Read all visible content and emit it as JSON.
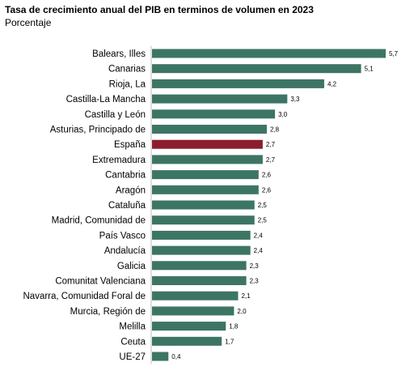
{
  "chart_data": {
    "type": "bar",
    "orientation": "horizontal",
    "title": "Tasa de crecimiento anual del PIB en terminos de volumen en 2023",
    "subtitle": "Porcentaje",
    "xlim": [
      0,
      5.7
    ],
    "grid": false,
    "categories": [
      "Balears, Illes",
      "Canarias",
      "Rioja, La",
      "Castilla-La Mancha",
      "Castilla y León",
      "Asturias, Principado de",
      "España",
      "Extremadura",
      "Cantabria",
      "Aragón",
      "Cataluña",
      "Madrid, Comunidad de",
      "País Vasco",
      "Andalucía",
      "Galicia",
      "Comunitat Valenciana",
      "Navarra, Comunidad Foral de",
      "Murcia, Región de",
      "Melilla",
      "Ceuta",
      "UE-27"
    ],
    "values": [
      5.7,
      5.1,
      4.2,
      3.3,
      3.0,
      2.8,
      2.7,
      2.7,
      2.6,
      2.6,
      2.5,
      2.5,
      2.4,
      2.4,
      2.3,
      2.3,
      2.1,
      2.0,
      1.8,
      1.7,
      0.4
    ],
    "value_labels": [
      "5,7",
      "5,1",
      "4,2",
      "3,3",
      "3,0",
      "2,8",
      "2,7",
      "2,7",
      "2,6",
      "2,6",
      "2,5",
      "2,5",
      "2,4",
      "2,4",
      "2,3",
      "2,3",
      "2,1",
      "2,0",
      "1,8",
      "1,7",
      "0,4"
    ],
    "highlight_category": "España",
    "colors": {
      "bar": "#3d7565",
      "highlight": "#8c1d2e",
      "axis": "#bfbfbf"
    }
  }
}
